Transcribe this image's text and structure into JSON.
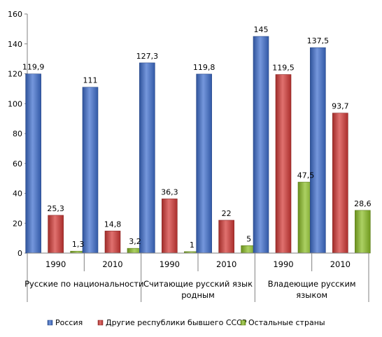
{
  "chart_data": {
    "type": "bar",
    "title": "",
    "xlabel": "",
    "ylabel": "",
    "ylim": [
      0,
      160
    ],
    "y_ticks": [
      0,
      20,
      40,
      60,
      80,
      100,
      120,
      140,
      160
    ],
    "grid": false,
    "legend_position": "bottom",
    "groups": [
      {
        "label": "Русские по национальности",
        "label_lines": [
          "Русские по национальности"
        ],
        "years": [
          "1990",
          "2010"
        ]
      },
      {
        "label": "Считающие русский язык родным",
        "label_lines": [
          "Считающие  русский язык",
          "родным"
        ],
        "years": [
          "1990",
          "2010"
        ]
      },
      {
        "label": "Владеющие русским языком",
        "label_lines": [
          "Владеющие русским",
          "языком"
        ],
        "years": [
          "1990",
          "2010"
        ]
      }
    ],
    "categories": [
      "1990",
      "2010",
      "1990",
      "2010",
      "1990",
      "2010"
    ],
    "series": [
      {
        "name": "Россия",
        "color": "#3f6fcf",
        "values": [
          119.9,
          111,
          127.3,
          119.8,
          145,
          137.5
        ],
        "labels": [
          "119,9",
          "111",
          "127,3",
          "119,8",
          "145",
          "137,5"
        ]
      },
      {
        "name": "Другие республики бывшего СССР",
        "color": "#d43a37",
        "values": [
          25.3,
          14.8,
          36.3,
          22,
          119.5,
          93.7
        ],
        "labels": [
          "25,3",
          "14,8",
          "36,3",
          "22",
          "119,5",
          "93,7"
        ]
      },
      {
        "name": "Остальные страны",
        "color": "#8cbf26",
        "values": [
          1.3,
          3.2,
          1,
          5,
          47.5,
          28.6
        ],
        "labels": [
          "1,3",
          "3,2",
          "1",
          "5",
          "47,5",
          "28,6"
        ]
      }
    ]
  }
}
